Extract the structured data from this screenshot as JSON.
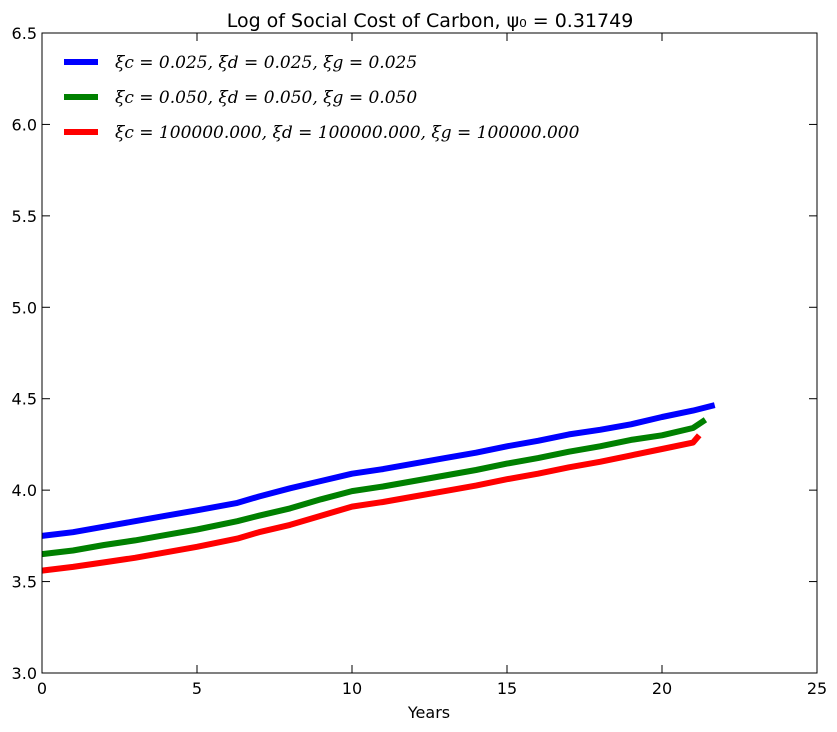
{
  "chart_data": {
    "type": "line",
    "title": "Log of Social Cost of Carbon, ψ₀ = 0.31749",
    "xlabel": "Years",
    "ylabel": "",
    "xlim": [
      0,
      25
    ],
    "ylim": [
      3.0,
      6.5
    ],
    "xticks": [
      0,
      5,
      10,
      15,
      20,
      25
    ],
    "yticks": [
      3.0,
      3.5,
      4.0,
      4.5,
      5.0,
      5.5,
      6.0,
      6.5
    ],
    "grid": false,
    "legend_position": "top-left",
    "series": [
      {
        "name": "ξc = 0.025, ξd = 0.025, ξg = 0.025",
        "color": "#0000ff",
        "x": [
          0,
          1,
          2,
          3,
          4,
          5,
          6.3,
          7,
          8,
          9,
          10,
          11,
          12,
          13,
          14,
          15,
          16,
          17,
          18,
          19,
          20,
          21,
          21.7
        ],
        "y": [
          3.75,
          3.77,
          3.8,
          3.83,
          3.86,
          3.89,
          3.93,
          3.965,
          4.01,
          4.05,
          4.09,
          4.115,
          4.145,
          4.175,
          4.205,
          4.24,
          4.27,
          4.305,
          4.33,
          4.36,
          4.4,
          4.435,
          4.465
        ]
      },
      {
        "name": "ξc = 0.050, ξd = 0.050, ξg = 0.050",
        "color": "#008000",
        "x": [
          0,
          1,
          2,
          3,
          4,
          5,
          6.3,
          7,
          8,
          9,
          10,
          11,
          12,
          13,
          14,
          15,
          16,
          17,
          18,
          19,
          20,
          21,
          21.4
        ],
        "y": [
          3.65,
          3.67,
          3.7,
          3.725,
          3.755,
          3.785,
          3.83,
          3.86,
          3.9,
          3.95,
          3.995,
          4.02,
          4.05,
          4.08,
          4.11,
          4.145,
          4.175,
          4.21,
          4.24,
          4.275,
          4.3,
          4.34,
          4.385
        ]
      },
      {
        "name": "ξc = 100000.000, ξd = 100000.000, ξg = 100000.000",
        "color": "#ff0000",
        "x": [
          0,
          1,
          2,
          3,
          4,
          5,
          6.3,
          7,
          8,
          9,
          10,
          11,
          12,
          13,
          14,
          15,
          16,
          17,
          18,
          19,
          20,
          21,
          21.2
        ],
        "y": [
          3.56,
          3.58,
          3.605,
          3.63,
          3.66,
          3.69,
          3.735,
          3.77,
          3.81,
          3.86,
          3.91,
          3.935,
          3.965,
          3.995,
          4.025,
          4.06,
          4.09,
          4.125,
          4.155,
          4.19,
          4.225,
          4.26,
          4.3
        ]
      }
    ]
  }
}
